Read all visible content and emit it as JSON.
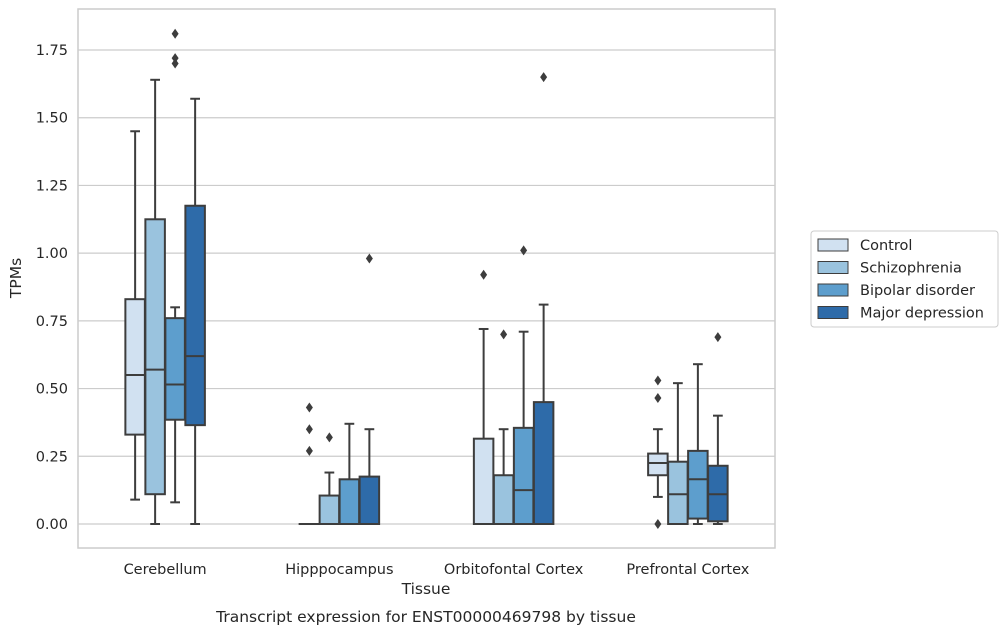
{
  "chart_data": {
    "type": "box",
    "title": "",
    "caption": "Transcript expression for ENST00000469798 by tissue",
    "xlabel": "Tissue",
    "ylabel": "TPMs",
    "ylim": [
      -0.09,
      1.89
    ],
    "yticks": [
      "0.00",
      "0.25",
      "0.50",
      "0.75",
      "1.00",
      "1.25",
      "1.50",
      "1.75"
    ],
    "ytick_values": [
      0,
      0.25,
      0.5,
      0.75,
      1.0,
      1.25,
      1.5,
      1.75
    ],
    "grid": "horizontal",
    "legend_position": "right",
    "categories": [
      "Cerebellum",
      "Hipppocampus",
      "Orbitofontal Cortex",
      "Prefrontal Cortex"
    ],
    "series": [
      {
        "name": "Control",
        "color": "#d1e1f1",
        "boxes": [
          {
            "whislo": 0.09,
            "q1": 0.33,
            "med": 0.55,
            "q3": 0.83,
            "whishi": 1.45,
            "fliers": []
          },
          {
            "whislo": 0.0,
            "q1": 0.0,
            "med": 0.0,
            "q3": 0.0,
            "whishi": 0.0,
            "fliers": [
              0.27,
              0.35,
              0.43
            ]
          },
          {
            "whislo": 0.0,
            "q1": 0.0,
            "med": 0.0,
            "q3": 0.315,
            "whishi": 0.72,
            "fliers": [
              0.92
            ]
          },
          {
            "whislo": 0.1,
            "q1": 0.18,
            "med": 0.225,
            "q3": 0.26,
            "whishi": 0.35,
            "fliers": [
              0.0,
              0.465,
              0.53
            ]
          }
        ]
      },
      {
        "name": "Schizophrenia",
        "color": "#9ac3de",
        "boxes": [
          {
            "whislo": 0.0,
            "q1": 0.11,
            "med": 0.57,
            "q3": 1.125,
            "whishi": 1.64,
            "fliers": []
          },
          {
            "whislo": 0.0,
            "q1": 0.0,
            "med": 0.0,
            "q3": 0.105,
            "whishi": 0.19,
            "fliers": [
              0.32
            ]
          },
          {
            "whislo": 0.0,
            "q1": 0.0,
            "med": 0.0,
            "q3": 0.18,
            "whishi": 0.35,
            "fliers": [
              0.7
            ]
          },
          {
            "whislo": 0.0,
            "q1": 0.0,
            "med": 0.11,
            "q3": 0.23,
            "whishi": 0.52,
            "fliers": []
          }
        ]
      },
      {
        "name": "Bipolar disorder",
        "color": "#5d9ecd",
        "boxes": [
          {
            "whislo": 0.08,
            "q1": 0.385,
            "med": 0.515,
            "q3": 0.76,
            "whishi": 0.8,
            "fliers": [
              1.7,
              1.72,
              1.81
            ]
          },
          {
            "whislo": 0.0,
            "q1": 0.0,
            "med": 0.0,
            "q3": 0.165,
            "whishi": 0.37,
            "fliers": []
          },
          {
            "whislo": 0.0,
            "q1": 0.0,
            "med": 0.125,
            "q3": 0.355,
            "whishi": 0.71,
            "fliers": [
              1.01
            ]
          },
          {
            "whislo": 0.0,
            "q1": 0.02,
            "med": 0.165,
            "q3": 0.27,
            "whishi": 0.59,
            "fliers": []
          }
        ]
      },
      {
        "name": "Major depression",
        "color": "#2e6ba9",
        "boxes": [
          {
            "whislo": 0.0,
            "q1": 0.365,
            "med": 0.62,
            "q3": 1.175,
            "whishi": 1.57,
            "fliers": []
          },
          {
            "whislo": 0.0,
            "q1": 0.0,
            "med": 0.0,
            "q3": 0.175,
            "whishi": 0.35,
            "fliers": [
              0.98
            ]
          },
          {
            "whislo": 0.0,
            "q1": 0.0,
            "med": 0.0,
            "q3": 0.45,
            "whishi": 0.81,
            "fliers": [
              1.65
            ]
          },
          {
            "whislo": 0.0,
            "q1": 0.01,
            "med": 0.11,
            "q3": 0.215,
            "whishi": 0.4,
            "fliers": [
              0.69
            ]
          }
        ]
      }
    ]
  }
}
